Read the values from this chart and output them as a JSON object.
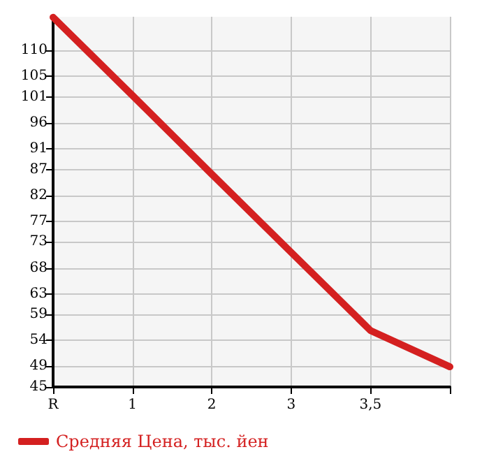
{
  "chart_data": {
    "type": "line",
    "categories": [
      "R",
      "1",
      "2",
      "3",
      "3,5",
      null
    ],
    "series": [
      {
        "name": "Средняя Цена, тыс. йен",
        "color": "#d42020",
        "values": [
          116.4,
          101.3,
          86.1,
          71.0,
          55.9,
          48.9
        ]
      }
    ],
    "ylim": [
      45,
      116.5
    ],
    "yticks": [
      45,
      49,
      54,
      59,
      63,
      68,
      73,
      77,
      82,
      87,
      91,
      96,
      101,
      105,
      110
    ],
    "grid": true,
    "legend": "bottom left",
    "marker": "none",
    "line_style": "solid"
  }
}
